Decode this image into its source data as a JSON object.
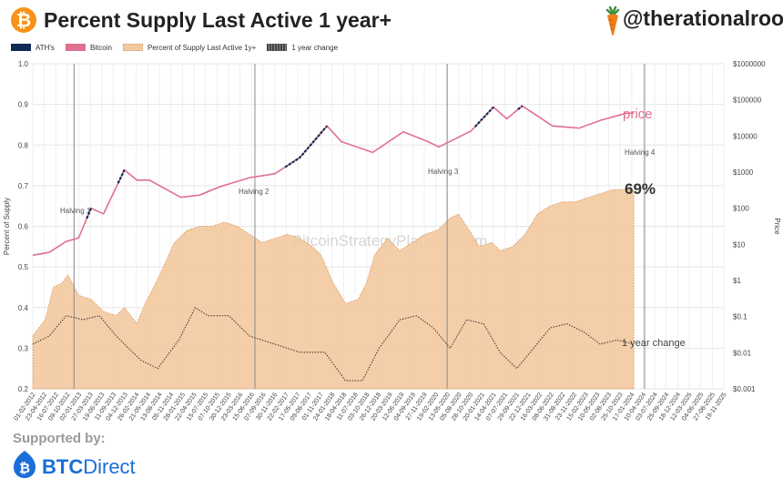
{
  "header": {
    "title": "Percent Supply Last Active 1 year+",
    "handle": "@therationalroot"
  },
  "legend": [
    {
      "label": "ATH's",
      "color": "#0f2b55"
    },
    {
      "label": "Bitcoin",
      "color": "#e07090"
    },
    {
      "label": "Percent of Supply Last Active 1y+",
      "color": "#f3c9a0"
    },
    {
      "label": "1 year change",
      "color": "#444444"
    }
  ],
  "footer": {
    "supported_by": "Supported by:",
    "brand_bold": "BTC",
    "brand_light": "Direct"
  },
  "chart_data": {
    "type": "area",
    "watermark": "BitcoinStrategyPlatform.com",
    "xlabel": "",
    "ylabel": "Percent of Supply",
    "ylabel_right": "Price",
    "ylim": [
      0.2,
      1.0
    ],
    "y_ticks": [
      "0.2",
      "0.3",
      "0.4",
      "0.5",
      "0.6",
      "0.7",
      "0.8",
      "0.9",
      "1.0"
    ],
    "y2_scale": "log",
    "y2lim": [
      0.001,
      1000000
    ],
    "y2_ticks": [
      "$0.001",
      "$0.01",
      "$0.1",
      "$1",
      "$10",
      "$100",
      "$1000",
      "$10000",
      "$100000",
      "$1000000"
    ],
    "x_ticks": [
      "01-02-2012",
      "23-04-2012",
      "16-07-2012",
      "09-10-2012",
      "02-01-2013",
      "27-03-2013",
      "19-06-2013",
      "11-09-2013",
      "04-12-2013",
      "26-02-2014",
      "21-05-2014",
      "13-08-2014",
      "05-11-2014",
      "28-01-2015",
      "22-04-2015",
      "15-07-2015",
      "07-10-2015",
      "30-12-2015",
      "23-03-2016",
      "15-06-2016",
      "07-09-2016",
      "30-11-2016",
      "22-02-2017",
      "17-05-2017",
      "09-08-2017",
      "01-11-2017",
      "24-01-2018",
      "18-04-2018",
      "11-07-2018",
      "03-10-2018",
      "26-12-2018",
      "20-03-2019",
      "12-06-2019",
      "04-09-2019",
      "27-11-2019",
      "19-02-2020",
      "13-05-2020",
      "05-08-2020",
      "28-10-2020",
      "20-01-2021",
      "14-04-2021",
      "07-07-2021",
      "29-09-2021",
      "22-12-2021",
      "16-03-2022",
      "08-06-2022",
      "31-08-2022",
      "23-11-2022",
      "15-02-2023",
      "10-05-2023",
      "02-08-2023",
      "25-10-2023",
      "17-01-2024",
      "10-04-2024",
      "03-07-2024",
      "25-09-2024",
      "18-12-2024",
      "12-03-2025",
      "04-06-2025",
      "27-08-2025",
      "19-11-2025"
    ],
    "halvings": [
      {
        "label": "Halving 1",
        "date": "2012-11-28"
      },
      {
        "label": "Halving 2",
        "date": "2016-07-09"
      },
      {
        "label": "Halving 3",
        "date": "2020-05-11"
      },
      {
        "label": "Halving 4",
        "date": "2024-04-20"
      }
    ],
    "annotations": {
      "price": "price",
      "current_percent": "69%",
      "change": "1 year change"
    },
    "series": [
      {
        "name": "Percent of Supply Last Active 1y+",
        "x": [
          "2012-02-01",
          "2012-05-01",
          "2012-07-01",
          "2012-09-01",
          "2012-10-15",
          "2013-01-01",
          "2013-04-01",
          "2013-07-01",
          "2013-10-01",
          "2013-12-01",
          "2014-03-01",
          "2014-05-01",
          "2014-08-01",
          "2014-12-01",
          "2015-03-01",
          "2015-06-01",
          "2015-09-01",
          "2015-12-01",
          "2016-03-01",
          "2016-06-01",
          "2016-09-01",
          "2016-12-01",
          "2017-03-01",
          "2017-06-01",
          "2017-09-01",
          "2017-11-01",
          "2018-02-01",
          "2018-05-01",
          "2018-08-01",
          "2018-10-01",
          "2018-12-01",
          "2019-03-01",
          "2019-06-01",
          "2019-09-01",
          "2019-12-01",
          "2020-03-01",
          "2020-06-01",
          "2020-08-01",
          "2020-10-01",
          "2021-01-01",
          "2021-04-01",
          "2021-06-01",
          "2021-09-01",
          "2021-12-01",
          "2022-03-01",
          "2022-06-01",
          "2022-09-01",
          "2022-12-01",
          "2023-03-01",
          "2023-06-01",
          "2023-09-01",
          "2023-12-01",
          "2024-02-01"
        ],
        "values": [
          0.33,
          0.37,
          0.45,
          0.46,
          0.48,
          0.43,
          0.42,
          0.39,
          0.38,
          0.4,
          0.36,
          0.41,
          0.47,
          0.56,
          0.59,
          0.6,
          0.6,
          0.61,
          0.6,
          0.58,
          0.56,
          0.57,
          0.58,
          0.57,
          0.55,
          0.53,
          0.46,
          0.41,
          0.42,
          0.46,
          0.53,
          0.57,
          0.54,
          0.56,
          0.58,
          0.59,
          0.62,
          0.63,
          0.6,
          0.55,
          0.56,
          0.54,
          0.55,
          0.58,
          0.63,
          0.65,
          0.66,
          0.66,
          0.67,
          0.68,
          0.69,
          0.69,
          0.69
        ]
      },
      {
        "name": "Bitcoin",
        "x": [
          "2012-02-01",
          "2012-06-01",
          "2012-10-01",
          "2013-01-01",
          "2013-04-01",
          "2013-07-01",
          "2013-11-30",
          "2014-03-01",
          "2014-06-01",
          "2015-01-15",
          "2015-06-01",
          "2015-11-01",
          "2016-06-01",
          "2016-12-01",
          "2017-06-01",
          "2017-12-17",
          "2018-04-01",
          "2018-11-15",
          "2019-06-26",
          "2019-12-15",
          "2020-03-12",
          "2020-11-01",
          "2021-04-14",
          "2021-07-20",
          "2021-11-10",
          "2022-06-18",
          "2022-12-30",
          "2023-06-01",
          "2023-12-01",
          "2024-02-01"
        ],
        "values": [
          5,
          6,
          12,
          15,
          100,
          70,
          1150,
          600,
          600,
          200,
          230,
          400,
          700,
          900,
          2500,
          19000,
          7000,
          3500,
          13000,
          7200,
          5000,
          13700,
          63000,
          30000,
          68000,
          19000,
          16500,
          27000,
          42000,
          43000
        ]
      },
      {
        "name": "1 year change",
        "x": [
          "2012-02-01",
          "2012-06-01",
          "2012-10-01",
          "2013-02-01",
          "2013-06-01",
          "2013-10-01",
          "2014-04-01",
          "2014-08-01",
          "2015-01-01",
          "2015-05-01",
          "2015-08-01",
          "2016-01-01",
          "2016-06-01",
          "2016-12-01",
          "2017-06-01",
          "2017-12-01",
          "2018-05-01",
          "2018-09-01",
          "2019-01-01",
          "2019-06-01",
          "2019-10-01",
          "2020-02-01",
          "2020-06-01",
          "2020-10-01",
          "2021-02-01",
          "2021-06-01",
          "2021-10-01",
          "2022-02-01",
          "2022-06-01",
          "2022-10-01",
          "2023-02-01",
          "2023-06-01",
          "2023-10-01",
          "2024-02-01"
        ],
        "values": [
          0.31,
          0.33,
          0.38,
          0.37,
          0.38,
          0.33,
          0.27,
          0.25,
          0.32,
          0.4,
          0.38,
          0.38,
          0.33,
          0.31,
          0.29,
          0.29,
          0.22,
          0.22,
          0.3,
          0.37,
          0.38,
          0.35,
          0.3,
          0.37,
          0.36,
          0.29,
          0.25,
          0.3,
          0.35,
          0.36,
          0.34,
          0.31,
          0.32,
          0.31
        ]
      }
    ],
    "ath_segments": [
      [
        "2013-03-01",
        "2013-04-10"
      ],
      [
        "2013-10-15",
        "2013-11-30"
      ],
      [
        "2017-02-15",
        "2017-12-17"
      ],
      [
        "2020-12-01",
        "2021-04-14"
      ],
      [
        "2021-10-10",
        "2021-11-10"
      ]
    ]
  }
}
